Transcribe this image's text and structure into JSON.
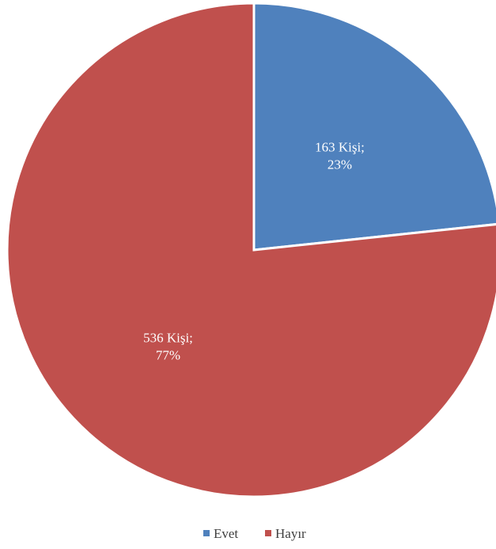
{
  "chart_data": {
    "type": "pie",
    "title": "",
    "categories": [
      "Evet",
      "Hayır"
    ],
    "values": [
      163,
      536
    ],
    "value_unit": "Kişi",
    "percent_labels": [
      "23%",
      "77%"
    ],
    "data_labels": [
      {
        "line1": "163 Kişi;",
        "line2": "23%"
      },
      {
        "line1": "536 Kişi;",
        "line2": "77%"
      }
    ],
    "colors": [
      "#4F81BD",
      "#C0504D"
    ],
    "start_angle_deg": 0,
    "direction": "clockwise",
    "legend_position": "bottom"
  },
  "legend": {
    "items": [
      {
        "label": "Evet",
        "color": "#4F81BD"
      },
      {
        "label": "Hayır",
        "color": "#C0504D"
      }
    ]
  }
}
